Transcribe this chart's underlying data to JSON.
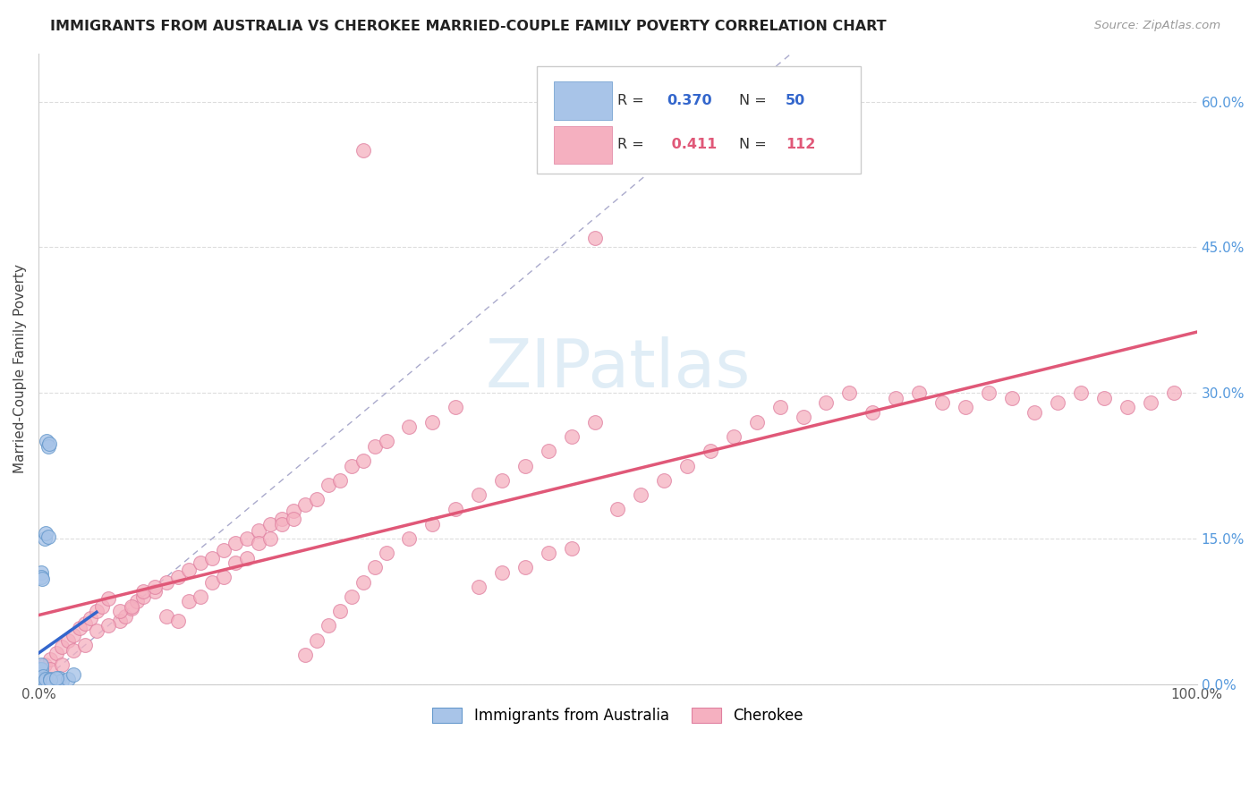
{
  "title": "IMMIGRANTS FROM AUSTRALIA VS CHEROKEE MARRIED-COUPLE FAMILY POVERTY CORRELATION CHART",
  "source": "Source: ZipAtlas.com",
  "ylabel": "Married-Couple Family Poverty",
  "ytick_vals": [
    0.0,
    15.0,
    30.0,
    45.0,
    60.0
  ],
  "ytick_labels": [
    "0.0%",
    "15.0%",
    "30.0%",
    "45.0%",
    "60.0%"
  ],
  "xlim": [
    0,
    100
  ],
  "ylim": [
    0,
    65
  ],
  "legend_blue_r": "0.370",
  "legend_blue_n": "50",
  "legend_pink_r": "0.411",
  "legend_pink_n": "112",
  "blue_scatter_color": "#a8c4e8",
  "blue_edge_color": "#6699cc",
  "pink_scatter_color": "#f5b0c0",
  "pink_edge_color": "#e080a0",
  "blue_line_color": "#3366cc",
  "pink_line_color": "#e05878",
  "diag_line_color": "#aaaacc",
  "right_tick_color": "#5599dd",
  "title_color": "#222222",
  "source_color": "#999999",
  "watermark_color": "#c8dff0",
  "grid_color": "#dddddd",
  "blue_x": [
    0.02,
    0.03,
    0.03,
    0.04,
    0.04,
    0.05,
    0.05,
    0.05,
    0.06,
    0.06,
    0.06,
    0.07,
    0.07,
    0.07,
    0.08,
    0.08,
    0.09,
    0.09,
    0.1,
    0.1,
    0.11,
    0.12,
    0.13,
    0.14,
    0.15,
    0.16,
    0.18,
    0.2,
    0.22,
    0.25,
    0.3,
    0.35,
    0.4,
    0.5,
    0.6,
    0.7,
    0.8,
    0.9,
    1.0,
    1.2,
    1.5,
    1.8,
    2.0,
    2.5,
    3.0,
    0.5,
    0.6,
    0.8,
    1.0,
    1.5
  ],
  "blue_y": [
    0.2,
    0.3,
    0.5,
    0.2,
    0.4,
    0.3,
    0.5,
    1.0,
    0.5,
    0.8,
    1.5,
    0.4,
    0.6,
    1.2,
    0.3,
    0.7,
    0.5,
    1.0,
    0.4,
    0.8,
    0.6,
    1.5,
    0.5,
    0.3,
    0.7,
    1.0,
    1.5,
    2.0,
    11.5,
    11.0,
    10.8,
    0.5,
    0.8,
    0.3,
    0.5,
    25.0,
    24.5,
    24.8,
    0.5,
    0.3,
    0.4,
    0.6,
    0.3,
    0.5,
    1.0,
    15.0,
    15.5,
    15.2,
    0.4,
    0.6
  ],
  "pink_x": [
    0.5,
    1.0,
    1.5,
    2.0,
    2.5,
    3.0,
    3.5,
    4.0,
    4.5,
    5.0,
    5.5,
    6.0,
    7.0,
    7.5,
    8.0,
    8.5,
    9.0,
    10.0,
    11.0,
    12.0,
    13.0,
    14.0,
    15.0,
    16.0,
    17.0,
    18.0,
    19.0,
    20.0,
    21.0,
    22.0,
    23.0,
    24.0,
    25.0,
    26.0,
    27.0,
    28.0,
    29.0,
    30.0,
    32.0,
    34.0,
    36.0,
    38.0,
    40.0,
    42.0,
    44.0,
    46.0,
    48.0,
    50.0,
    52.0,
    54.0,
    56.0,
    58.0,
    60.0,
    62.0,
    64.0,
    66.0,
    68.0,
    70.0,
    72.0,
    74.0,
    76.0,
    78.0,
    80.0,
    82.0,
    84.0,
    86.0,
    88.0,
    90.0,
    92.0,
    94.0,
    96.0,
    98.0,
    1.0,
    2.0,
    3.0,
    4.0,
    5.0,
    6.0,
    7.0,
    8.0,
    9.0,
    10.0,
    11.0,
    12.0,
    13.0,
    14.0,
    15.0,
    16.0,
    17.0,
    18.0,
    19.0,
    20.0,
    21.0,
    22.0,
    23.0,
    24.0,
    25.0,
    26.0,
    27.0,
    28.0,
    29.0,
    30.0,
    32.0,
    34.0,
    36.0,
    38.0,
    40.0,
    42.0,
    44.0,
    46.0,
    28.0,
    48.0
  ],
  "pink_y": [
    2.0,
    2.5,
    3.2,
    3.8,
    4.5,
    5.0,
    5.8,
    6.2,
    6.8,
    7.5,
    8.0,
    8.8,
    6.5,
    7.0,
    7.8,
    8.5,
    9.0,
    9.5,
    10.5,
    11.0,
    11.8,
    12.5,
    13.0,
    13.8,
    14.5,
    15.0,
    15.8,
    16.5,
    17.0,
    17.8,
    3.0,
    4.5,
    6.0,
    7.5,
    9.0,
    10.5,
    12.0,
    13.5,
    15.0,
    16.5,
    18.0,
    19.5,
    21.0,
    22.5,
    24.0,
    25.5,
    27.0,
    18.0,
    19.5,
    21.0,
    22.5,
    24.0,
    25.5,
    27.0,
    28.5,
    27.5,
    29.0,
    30.0,
    28.0,
    29.5,
    30.0,
    29.0,
    28.5,
    30.0,
    29.5,
    28.0,
    29.0,
    30.0,
    29.5,
    28.5,
    29.0,
    30.0,
    1.5,
    2.0,
    3.5,
    4.0,
    5.5,
    6.0,
    7.5,
    8.0,
    9.5,
    10.0,
    7.0,
    6.5,
    8.5,
    9.0,
    10.5,
    11.0,
    12.5,
    13.0,
    14.5,
    15.0,
    16.5,
    17.0,
    18.5,
    19.0,
    20.5,
    21.0,
    22.5,
    23.0,
    24.5,
    25.0,
    26.5,
    27.0,
    28.5,
    10.0,
    11.5,
    12.0,
    13.5,
    14.0,
    55.0,
    46.0
  ]
}
